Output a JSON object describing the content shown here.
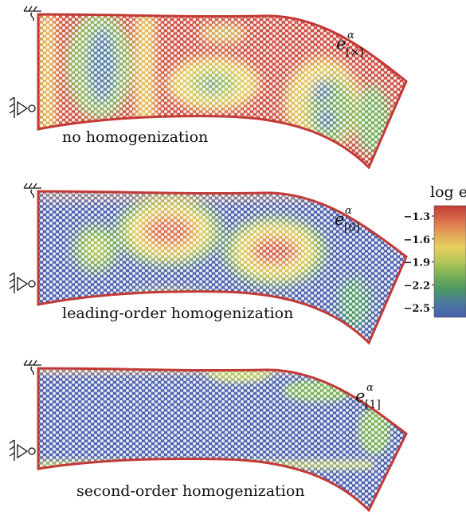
{
  "panels": [
    {
      "caption": "no homogenization",
      "symbol": {
        "base": "e",
        "sup": "α",
        "sub": "[×]"
      }
    },
    {
      "caption": "leading-order homogenization",
      "symbol": {
        "base": "e",
        "sup": "α",
        "sub": "[0]"
      }
    },
    {
      "caption": "second-order homogenization",
      "symbol": {
        "base": "e",
        "sup": "α",
        "sub": "[1]"
      }
    }
  ],
  "colorbar": {
    "title": "log e",
    "ticks": [
      "−1.3",
      "−1.6",
      "−1.9",
      "−2.2",
      "−2.5"
    ],
    "colors": [
      "#c23a36",
      "#db6c4c",
      "#e3a25a",
      "#e6cf5f",
      "#b5c85a",
      "#77b055",
      "#4c9865",
      "#4a78a0",
      "#4a5fae"
    ]
  }
}
